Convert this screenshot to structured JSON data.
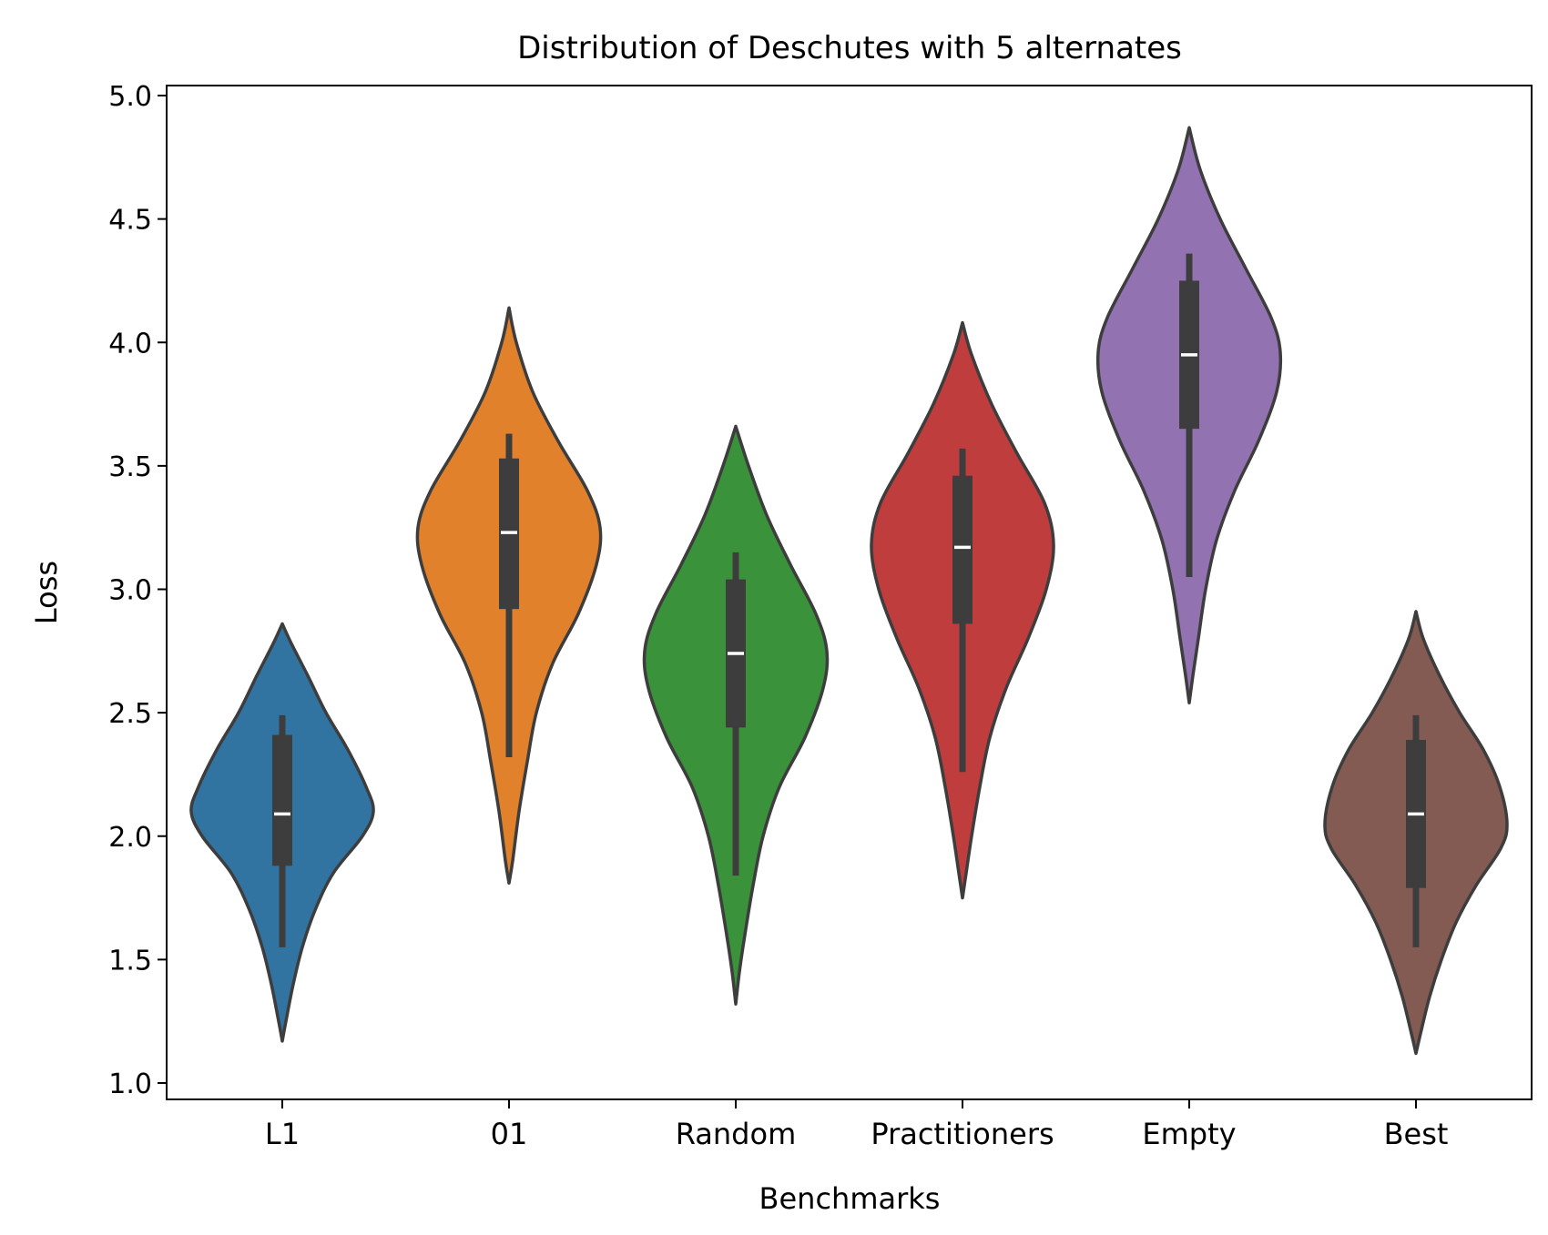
{
  "chart_data": {
    "type": "violin",
    "title": "Distribution of Deschutes with 5 alternates",
    "xlabel": "Benchmarks",
    "ylabel": "Loss",
    "ylim": [
      0.93,
      5.05
    ],
    "yticks": [
      "1.0",
      "1.5",
      "2.0",
      "2.5",
      "3.0",
      "3.5",
      "4.0",
      "4.5",
      "5.0"
    ],
    "ytick_values": [
      1.0,
      1.5,
      2.0,
      2.5,
      3.0,
      3.5,
      4.0,
      4.5,
      5.0
    ],
    "grid": false,
    "legend": "none",
    "categories": [
      "L1",
      "01",
      "Random",
      "Practitioners",
      "Empty",
      "Best"
    ],
    "colors": [
      "#3274a1",
      "#e1812c",
      "#3a923a",
      "#c03d3e",
      "#9372b2",
      "#845b53"
    ],
    "series": [
      {
        "label": "L1",
        "min": 1.17,
        "max": 2.86,
        "whisker_low": 1.55,
        "whisker_high": 2.49,
        "q1": 1.88,
        "median": 2.09,
        "q3": 2.41,
        "density_y": [
          1.17,
          1.25,
          1.4,
          1.55,
          1.7,
          1.85,
          2.0,
          2.1,
          2.2,
          2.35,
          2.5,
          2.65,
          2.78,
          2.86
        ],
        "density_w": [
          0.0,
          0.04,
          0.12,
          0.22,
          0.36,
          0.56,
          0.88,
          1.0,
          0.92,
          0.72,
          0.48,
          0.28,
          0.1,
          0.0
        ]
      },
      {
        "label": "01",
        "min": 1.81,
        "max": 4.14,
        "whisker_low": 2.32,
        "whisker_high": 3.63,
        "q1": 2.92,
        "median": 3.23,
        "q3": 3.53,
        "density_y": [
          1.81,
          1.9,
          2.1,
          2.3,
          2.5,
          2.7,
          2.9,
          3.1,
          3.25,
          3.4,
          3.6,
          3.8,
          4.0,
          4.14
        ],
        "density_w": [
          0.0,
          0.04,
          0.11,
          0.2,
          0.3,
          0.48,
          0.76,
          0.96,
          1.0,
          0.86,
          0.54,
          0.26,
          0.08,
          0.0
        ]
      },
      {
        "label": "Random",
        "min": 1.32,
        "max": 3.66,
        "whisker_low": 1.84,
        "whisker_high": 3.15,
        "q1": 2.44,
        "median": 2.74,
        "q3": 3.04,
        "density_y": [
          1.32,
          1.45,
          1.6,
          1.8,
          2.0,
          2.2,
          2.4,
          2.6,
          2.75,
          2.9,
          3.1,
          3.3,
          3.5,
          3.66
        ],
        "density_w": [
          0.0,
          0.04,
          0.1,
          0.19,
          0.3,
          0.48,
          0.76,
          0.96,
          1.0,
          0.88,
          0.6,
          0.34,
          0.14,
          0.0
        ]
      },
      {
        "label": "Practitioners",
        "min": 1.75,
        "max": 4.08,
        "whisker_low": 2.26,
        "whisker_high": 3.57,
        "q1": 2.86,
        "median": 3.17,
        "q3": 3.46,
        "density_y": [
          1.75,
          1.85,
          2.0,
          2.2,
          2.4,
          2.6,
          2.8,
          3.0,
          3.18,
          3.35,
          3.55,
          3.75,
          3.95,
          4.08
        ],
        "density_w": [
          0.0,
          0.04,
          0.1,
          0.19,
          0.3,
          0.48,
          0.72,
          0.92,
          1.0,
          0.9,
          0.6,
          0.32,
          0.1,
          0.0
        ]
      },
      {
        "label": "Empty",
        "min": 2.54,
        "max": 4.87,
        "whisker_low": 3.05,
        "whisker_high": 4.36,
        "q1": 3.65,
        "median": 3.95,
        "q3": 4.25,
        "density_y": [
          2.54,
          2.65,
          2.8,
          3.0,
          3.2,
          3.4,
          3.6,
          3.8,
          3.96,
          4.1,
          4.3,
          4.5,
          4.7,
          4.87
        ],
        "density_w": [
          0.0,
          0.04,
          0.1,
          0.18,
          0.3,
          0.5,
          0.76,
          0.96,
          1.0,
          0.9,
          0.62,
          0.34,
          0.12,
          0.0
        ]
      },
      {
        "label": "Best",
        "min": 1.12,
        "max": 2.91,
        "whisker_low": 1.55,
        "whisker_high": 2.49,
        "q1": 1.79,
        "median": 2.09,
        "q3": 2.39,
        "density_y": [
          1.12,
          1.2,
          1.35,
          1.5,
          1.65,
          1.8,
          1.95,
          2.05,
          2.2,
          2.35,
          2.5,
          2.65,
          2.8,
          2.91
        ],
        "density_w": [
          0.0,
          0.05,
          0.15,
          0.28,
          0.44,
          0.66,
          0.93,
          1.0,
          0.92,
          0.74,
          0.48,
          0.26,
          0.08,
          0.0
        ]
      }
    ]
  }
}
